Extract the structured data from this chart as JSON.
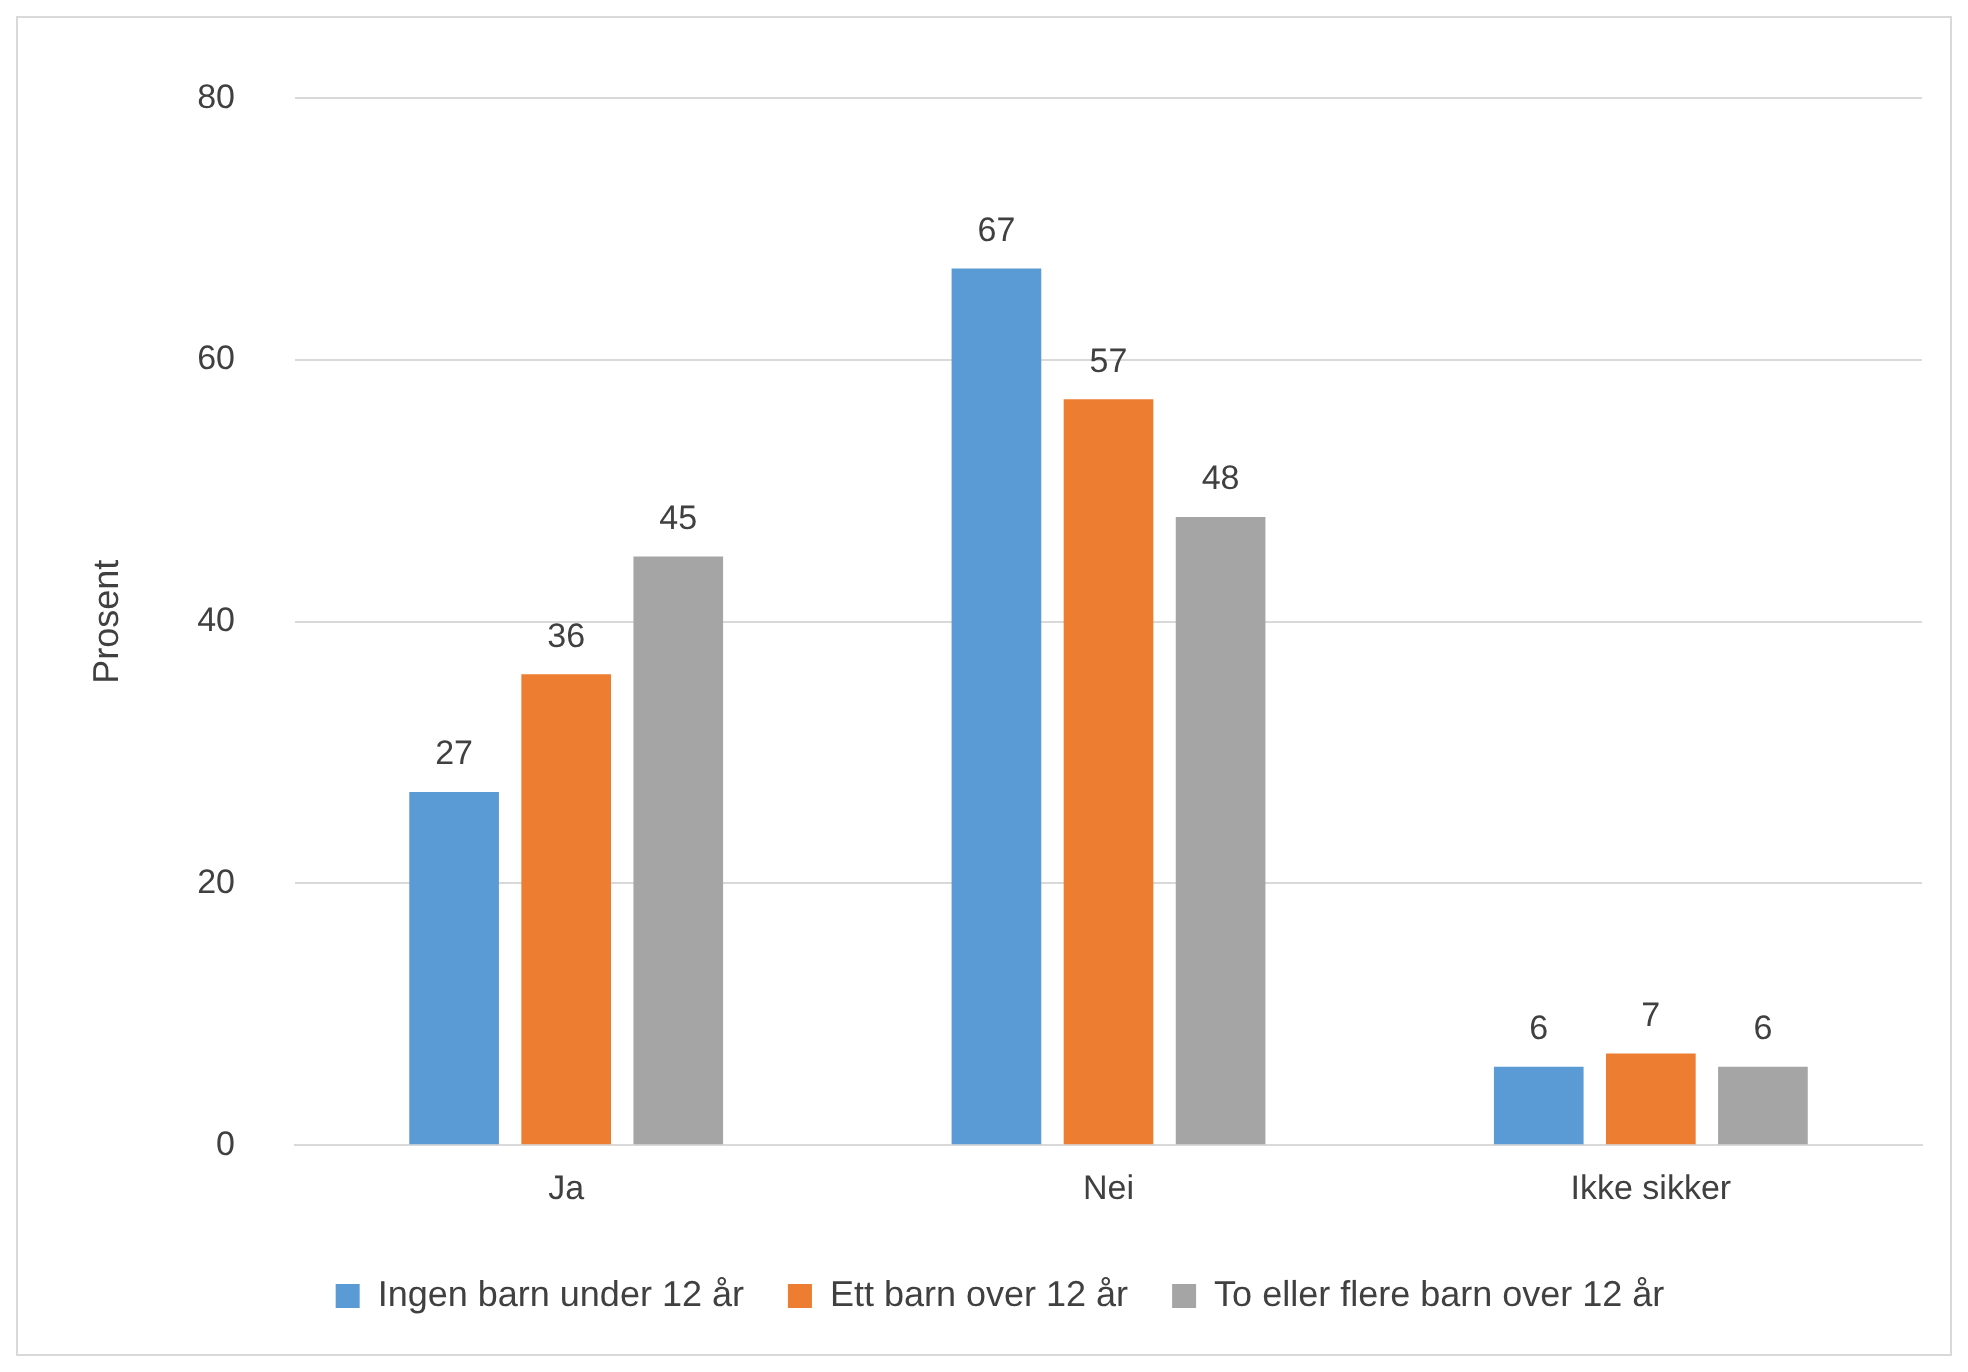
{
  "chart_data": {
    "type": "bar",
    "ylabel": "Prosent",
    "categories": [
      "Ja",
      "Nei",
      "Ikke sikker"
    ],
    "series": [
      {
        "name": "Ingen barn under 12 år",
        "color": "#5b9bd5",
        "values": [
          27,
          67,
          6
        ]
      },
      {
        "name": "Ett barn over 12 år",
        "color": "#ed7d31",
        "values": [
          36,
          57,
          7
        ]
      },
      {
        "name": "To eller flere barn over 12 år",
        "color": "#a5a5a5",
        "values": [
          45,
          48,
          6
        ]
      }
    ],
    "ylim": [
      0,
      80
    ],
    "yticks": [
      0,
      20,
      40,
      60,
      80
    ],
    "grid": "y",
    "legend": "bottom",
    "data_labels": true
  }
}
